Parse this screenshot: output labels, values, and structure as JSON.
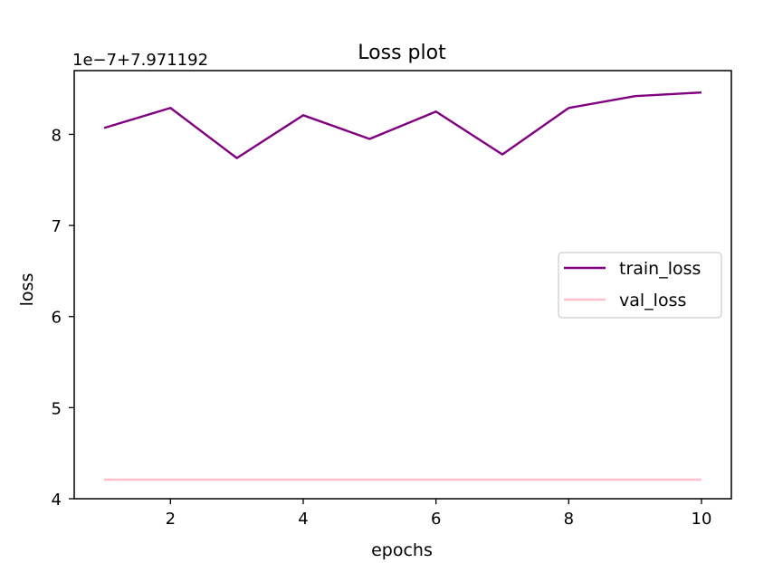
{
  "chart_data": {
    "type": "line",
    "title": "Loss plot",
    "xlabel": "epochs",
    "ylabel": "loss",
    "offset_label": "1e−7+7.971192",
    "x": [
      1,
      2,
      3,
      4,
      5,
      6,
      7,
      8,
      9,
      10
    ],
    "series": [
      {
        "name": "train_loss",
        "color": "#800080",
        "values": [
          8.07,
          8.29,
          7.74,
          8.21,
          7.95,
          8.25,
          7.78,
          8.29,
          8.42,
          8.46
        ]
      },
      {
        "name": "val_loss",
        "color": "#ffc0cb",
        "values": [
          4.21,
          4.21,
          4.21,
          4.21,
          4.21,
          4.21,
          4.21,
          4.21,
          4.21,
          4.21
        ]
      }
    ],
    "xlim": [
      0.55,
      10.45
    ],
    "ylim": [
      4.0,
      8.7
    ],
    "xticks": [
      2,
      4,
      6,
      8,
      10
    ],
    "yticks": [
      4,
      5,
      6,
      7,
      8
    ],
    "legend_position": "center-right",
    "grid": false
  }
}
